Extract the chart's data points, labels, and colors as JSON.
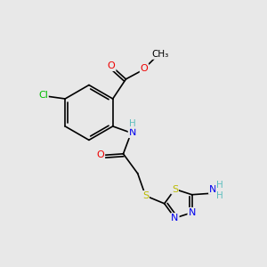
{
  "background_color": "#e8e8e8",
  "atom_colors": {
    "C": "#000000",
    "H": "#5fbfbf",
    "N": "#0000ee",
    "O": "#ee0000",
    "S": "#bbbb00",
    "Cl": "#00bb00"
  },
  "bond_color": "#000000",
  "bond_width": 1.2
}
